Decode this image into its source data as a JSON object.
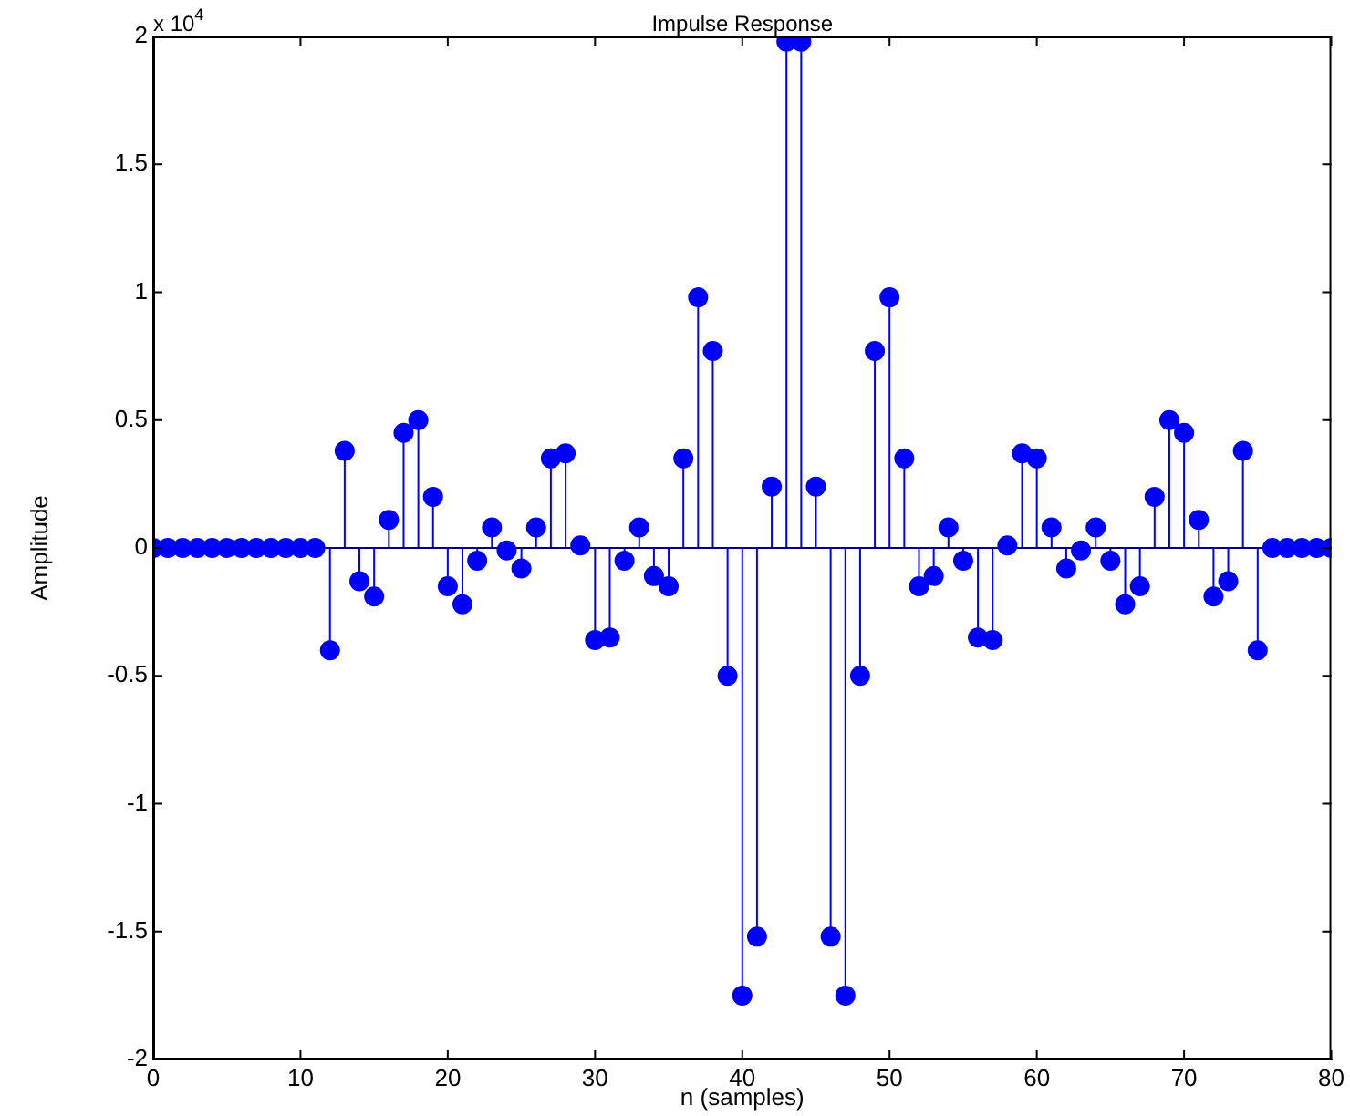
{
  "chart_data": {
    "type": "lollipop",
    "title": "Impulse Response",
    "xlabel": "n (samples)",
    "ylabel": "Amplitude",
    "annotations": [
      "x 10$^{4}$"
    ],
    "x": [
      0,
      1,
      2,
      3,
      4,
      5,
      6,
      7,
      8,
      9,
      10,
      11,
      12,
      13,
      14,
      15,
      16,
      17,
      18,
      19,
      20,
      21,
      22,
      23,
      24,
      25,
      26,
      27,
      28,
      29,
      30,
      31,
      32,
      33,
      34,
      35,
      36,
      37,
      38,
      39,
      40,
      41,
      42,
      43,
      44,
      45,
      46,
      47,
      48,
      49,
      50,
      51,
      52,
      53,
      54,
      55,
      56,
      57,
      58,
      59,
      60,
      61,
      62,
      63,
      64,
      65,
      66,
      67,
      68,
      69,
      70,
      71,
      72,
      73,
      74,
      75,
      76,
      77,
      78,
      79,
      80
    ],
    "series": [
      {
        "color": "#0000ff",
        "values": [
          0,
          0,
          0,
          0,
          0,
          0,
          0,
          0,
          0,
          0,
          0,
          0,
          -0.4,
          0.38,
          -0.13,
          -0.19,
          0.11,
          0.45,
          0.5,
          0.2,
          -0.15,
          -0.22,
          -0.05,
          0.08,
          -0.01,
          -0.08,
          0.08,
          0.35,
          0.37,
          0.01,
          -0.36,
          -0.35,
          -0.05,
          0.08,
          -0.11,
          -0.15,
          0.35,
          0.98,
          0.77,
          -0.5,
          -1.75,
          -1.52,
          0.24,
          1.98,
          1.98,
          0.24,
          -1.52,
          -1.75,
          -0.5,
          0.77,
          0.98,
          0.35,
          -0.15,
          -0.11,
          0.08,
          -0.05,
          -0.35,
          -0.36,
          0.01,
          0.37,
          0.35,
          0.08,
          -0.08,
          -0.01,
          0.08,
          -0.05,
          -0.22,
          -0.15,
          0.2,
          0.5,
          0.45,
          0.11,
          -0.19,
          -0.13,
          0.38,
          -0.4,
          0,
          0,
          0,
          0,
          0
        ]
      }
    ],
    "xlim": [
      0,
      80
    ],
    "xticks": [
      0,
      10,
      20,
      30,
      40,
      50,
      60,
      70,
      80
    ],
    "ylim": [
      -2,
      2
    ],
    "yticks": [
      -2,
      -1.5,
      -1,
      -0.5,
      0,
      0.5,
      1,
      1.5,
      2
    ],
    "ref_lines": [
      {
        "axis": "y",
        "value": 0,
        "color": "#000080"
      }
    ],
    "marker": "circle",
    "line_style": "solid",
    "grid": false,
    "legend": false
  }
}
